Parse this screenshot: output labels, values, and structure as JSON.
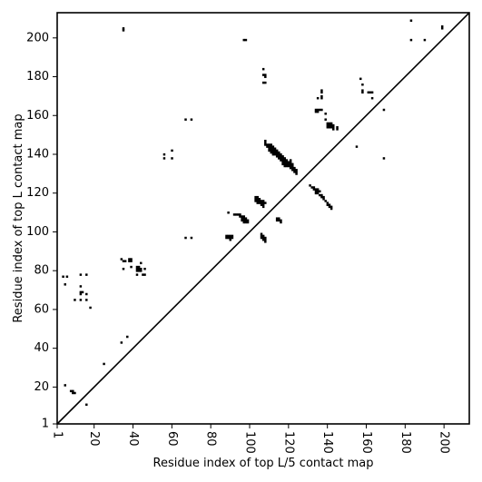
{
  "chart_data": {
    "type": "scatter",
    "xlabel": "Residue index of top L/5 contact map",
    "ylabel": "Residue index of top L contact map",
    "xlim": [
      1,
      213
    ],
    "ylim": [
      1,
      213
    ],
    "x_ticks": [
      1,
      20,
      40,
      60,
      80,
      100,
      120,
      140,
      160,
      180,
      200
    ],
    "y_ticks": [
      1,
      20,
      40,
      60,
      80,
      100,
      120,
      140,
      160,
      180,
      200
    ],
    "x_tick_rotation": -90,
    "diagonal": true,
    "grid": false,
    "legend": "none",
    "marker_color": "#000000",
    "upper_triangle_points": [
      [
        97,
        199
      ],
      [
        98,
        199
      ],
      [
        35,
        204
      ],
      [
        35,
        205
      ],
      [
        107,
        184
      ],
      [
        107,
        181
      ],
      [
        108,
        181
      ],
      [
        108,
        180
      ],
      [
        107,
        177
      ],
      [
        108,
        177
      ],
      [
        183,
        209
      ],
      [
        183,
        199
      ],
      [
        190,
        199
      ],
      [
        199,
        205
      ],
      [
        199,
        206
      ],
      [
        157,
        179
      ],
      [
        158,
        176
      ],
      [
        158,
        173
      ],
      [
        158,
        172
      ],
      [
        161,
        172
      ],
      [
        162,
        172
      ],
      [
        163,
        172
      ],
      [
        163,
        169
      ],
      [
        137,
        173
      ],
      [
        137,
        172
      ],
      [
        137,
        170
      ],
      [
        135,
        169
      ],
      [
        137,
        169
      ],
      [
        134,
        163
      ],
      [
        135,
        163
      ],
      [
        136,
        163
      ],
      [
        137,
        163
      ],
      [
        134,
        162
      ],
      [
        135,
        162
      ],
      [
        169,
        163
      ],
      [
        139,
        161
      ],
      [
        139,
        158
      ],
      [
        140,
        156
      ],
      [
        141,
        156
      ],
      [
        142,
        156
      ],
      [
        140,
        155
      ],
      [
        141,
        155
      ],
      [
        142,
        155
      ],
      [
        143,
        155
      ],
      [
        140,
        154
      ],
      [
        141,
        154
      ],
      [
        142,
        154
      ],
      [
        143,
        154
      ],
      [
        145,
        154
      ],
      [
        145,
        153
      ],
      [
        143,
        153
      ],
      [
        67,
        158
      ],
      [
        70,
        158
      ],
      [
        155,
        144
      ],
      [
        60,
        142
      ],
      [
        56,
        140
      ],
      [
        56,
        138
      ],
      [
        60,
        138
      ],
      [
        169,
        138
      ],
      [
        108,
        147
      ],
      [
        108,
        146
      ],
      [
        108,
        145
      ],
      [
        109,
        145
      ],
      [
        110,
        145
      ],
      [
        111,
        145
      ],
      [
        109,
        144
      ],
      [
        110,
        144
      ],
      [
        111,
        144
      ],
      [
        112,
        144
      ],
      [
        110,
        143
      ],
      [
        111,
        143
      ],
      [
        112,
        143
      ],
      [
        113,
        143
      ],
      [
        110,
        142
      ],
      [
        111,
        142
      ],
      [
        112,
        142
      ],
      [
        113,
        142
      ],
      [
        114,
        142
      ],
      [
        111,
        141
      ],
      [
        112,
        141
      ],
      [
        113,
        141
      ],
      [
        114,
        141
      ],
      [
        115,
        141
      ],
      [
        112,
        140
      ],
      [
        113,
        140
      ],
      [
        114,
        140
      ],
      [
        115,
        140
      ],
      [
        116,
        140
      ],
      [
        114,
        139
      ],
      [
        115,
        139
      ],
      [
        116,
        139
      ],
      [
        117,
        139
      ],
      [
        115,
        138
      ],
      [
        116,
        138
      ],
      [
        117,
        138
      ],
      [
        118,
        138
      ],
      [
        116,
        137
      ],
      [
        117,
        137
      ],
      [
        118,
        137
      ],
      [
        119,
        137
      ],
      [
        121,
        137
      ],
      [
        117,
        136
      ],
      [
        118,
        136
      ],
      [
        119,
        136
      ],
      [
        120,
        136
      ],
      [
        121,
        136
      ],
      [
        117,
        135
      ],
      [
        118,
        135
      ],
      [
        119,
        135
      ],
      [
        120,
        135
      ],
      [
        121,
        135
      ],
      [
        122,
        135
      ],
      [
        118,
        134
      ],
      [
        119,
        134
      ],
      [
        120,
        134
      ],
      [
        121,
        134
      ],
      [
        122,
        134
      ],
      [
        121,
        133
      ],
      [
        122,
        133
      ],
      [
        123,
        133
      ],
      [
        122,
        132
      ],
      [
        123,
        132
      ],
      [
        124,
        132
      ],
      [
        123,
        131
      ],
      [
        124,
        131
      ],
      [
        124,
        130
      ],
      [
        131,
        124
      ],
      [
        132,
        123
      ],
      [
        133,
        123
      ],
      [
        133,
        122
      ],
      [
        134,
        122
      ],
      [
        135,
        122
      ],
      [
        134,
        121
      ],
      [
        135,
        121
      ],
      [
        136,
        121
      ],
      [
        134,
        120
      ],
      [
        135,
        120
      ],
      [
        136,
        119
      ],
      [
        137,
        119
      ],
      [
        137,
        118
      ],
      [
        138,
        118
      ],
      [
        138,
        117
      ],
      [
        139,
        116
      ],
      [
        140,
        115
      ],
      [
        140,
        114
      ],
      [
        141,
        114
      ],
      [
        141,
        113
      ],
      [
        142,
        113
      ],
      [
        142,
        112
      ],
      [
        103,
        118
      ],
      [
        104,
        118
      ],
      [
        103,
        117
      ],
      [
        104,
        117
      ],
      [
        105,
        117
      ],
      [
        103,
        116
      ],
      [
        104,
        116
      ],
      [
        105,
        116
      ],
      [
        106,
        116
      ],
      [
        107,
        116
      ],
      [
        104,
        115
      ],
      [
        105,
        115
      ],
      [
        106,
        115
      ],
      [
        107,
        115
      ],
      [
        108,
        115
      ],
      [
        106,
        114
      ],
      [
        107,
        114
      ],
      [
        107,
        113
      ],
      [
        89,
        110
      ],
      [
        92,
        109
      ],
      [
        93,
        109
      ],
      [
        94,
        109
      ],
      [
        95,
        109
      ],
      [
        95,
        108
      ],
      [
        96,
        108
      ],
      [
        97,
        108
      ],
      [
        96,
        107
      ],
      [
        97,
        107
      ],
      [
        98,
        107
      ],
      [
        114,
        107
      ],
      [
        115,
        107
      ],
      [
        96,
        106
      ],
      [
        97,
        106
      ],
      [
        98,
        106
      ],
      [
        99,
        106
      ],
      [
        114,
        106
      ],
      [
        115,
        106
      ],
      [
        116,
        106
      ],
      [
        97,
        105
      ],
      [
        98,
        105
      ],
      [
        99,
        105
      ],
      [
        116,
        105
      ],
      [
        106,
        99
      ],
      [
        106,
        98
      ],
      [
        107,
        98
      ],
      [
        106,
        97
      ],
      [
        107,
        97
      ],
      [
        108,
        97
      ],
      [
        107,
        96
      ],
      [
        108,
        96
      ],
      [
        108,
        95
      ],
      [
        88,
        98
      ],
      [
        89,
        98
      ],
      [
        90,
        98
      ],
      [
        91,
        98
      ],
      [
        88,
        97
      ],
      [
        89,
        97
      ],
      [
        90,
        97
      ],
      [
        91,
        97
      ],
      [
        90,
        96
      ],
      [
        67,
        97
      ],
      [
        70,
        97
      ]
    ],
    "lower_triangle_points": [
      [
        4,
        77
      ],
      [
        6,
        77
      ],
      [
        5,
        73
      ],
      [
        13,
        78
      ],
      [
        16,
        78
      ],
      [
        13,
        72
      ],
      [
        13,
        69
      ],
      [
        14,
        69
      ],
      [
        13,
        68
      ],
      [
        16,
        68
      ],
      [
        10,
        65
      ],
      [
        13,
        65
      ],
      [
        16,
        65
      ],
      [
        18,
        61
      ],
      [
        34,
        86
      ],
      [
        35,
        85
      ],
      [
        36,
        85
      ],
      [
        38,
        85
      ],
      [
        38,
        86
      ],
      [
        39,
        86
      ],
      [
        39,
        85
      ],
      [
        44,
        84
      ],
      [
        35,
        81
      ],
      [
        39,
        82
      ],
      [
        42,
        82
      ],
      [
        43,
        82
      ],
      [
        42,
        81
      ],
      [
        43,
        81
      ],
      [
        44,
        81
      ],
      [
        46,
        81
      ],
      [
        42,
        80
      ],
      [
        43,
        80
      ],
      [
        44,
        80
      ],
      [
        42,
        78
      ],
      [
        45,
        78
      ],
      [
        46,
        78
      ],
      [
        34,
        43
      ],
      [
        37,
        46
      ],
      [
        25,
        32
      ],
      [
        5,
        21
      ],
      [
        8,
        18
      ],
      [
        9,
        18
      ],
      [
        9,
        17
      ],
      [
        10,
        17
      ],
      [
        16,
        11
      ]
    ]
  }
}
